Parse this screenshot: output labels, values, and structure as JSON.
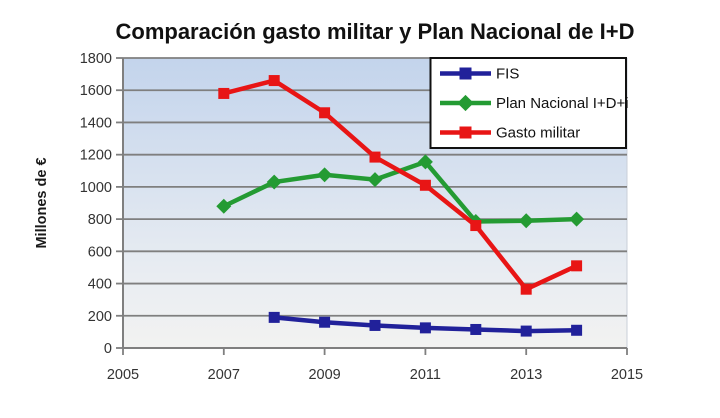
{
  "chart_data": {
    "type": "line",
    "title": "Comparación gasto militar y Plan Nacional de I+D",
    "ylabel": "Millones de €",
    "xlabel": "",
    "xlim": [
      2005,
      2015
    ],
    "ylim": [
      0,
      1800
    ],
    "xticks": [
      2005,
      2007,
      2009,
      2011,
      2013,
      2015
    ],
    "yticks": [
      0,
      200,
      400,
      600,
      800,
      1000,
      1200,
      1400,
      1600,
      1800
    ],
    "grid": true,
    "legend_position": "top-right",
    "series": [
      {
        "name": "FIS",
        "marker": "square",
        "color": "#21219a",
        "x": [
          2008,
          2009,
          2010,
          2011,
          2012,
          2013,
          2014
        ],
        "values": [
          190,
          160,
          140,
          125,
          115,
          105,
          110
        ]
      },
      {
        "name": "Plan Nacional I+D+i",
        "marker": "diamond",
        "color": "#249b33",
        "x": [
          2007,
          2008,
          2009,
          2010,
          2011,
          2012,
          2013,
          2014
        ],
        "values": [
          880,
          1030,
          1075,
          1045,
          1155,
          785,
          790,
          800
        ]
      },
      {
        "name": "Gasto militar",
        "marker": "square",
        "color": "#e81515",
        "x": [
          2007,
          2008,
          2009,
          2010,
          2011,
          2012,
          2013,
          2014
        ],
        "values": [
          1580,
          1660,
          1460,
          1185,
          1010,
          760,
          365,
          510
        ]
      }
    ],
    "colors": {
      "plot_bg_top": "#c3d4ec",
      "plot_bg_bottom": "#f2f2f1",
      "gridline": "#7f7f7f",
      "axis": "#7f7f7f",
      "plot_right_edge": "#c9cfd8",
      "legend_border": "#111111",
      "legend_bg": "#ffffff"
    }
  }
}
